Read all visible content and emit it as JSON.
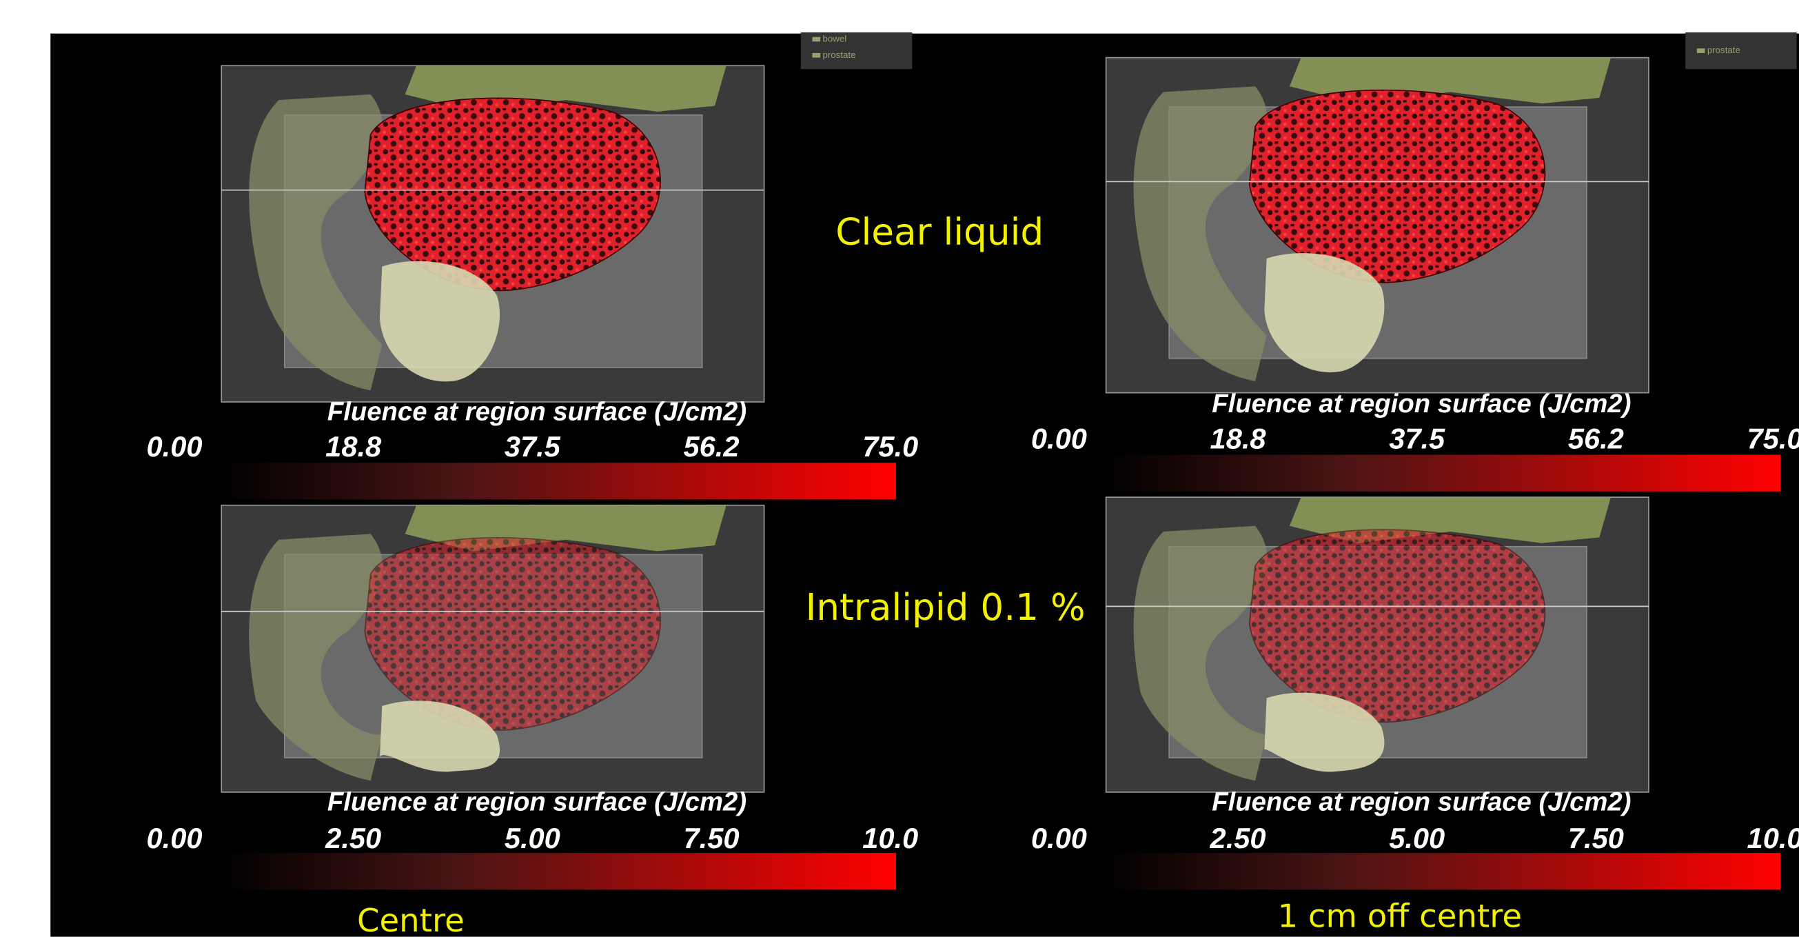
{
  "row_labels": [
    "Clear liquid",
    "Intralipid 0.1 %"
  ],
  "column_labels": [
    "Centre",
    "1 cm off centre"
  ],
  "panels": [
    {
      "legend": [
        "bowel",
        "prostate"
      ],
      "colorbar_title": "Fluence at region surface (J/cm2)",
      "colorbar_ticks": [
        "0.00",
        "18.8",
        "37.5",
        "56.2",
        "75.0"
      ]
    },
    {
      "legend": [
        "prostate"
      ],
      "colorbar_title": "Fluence at region surface (J/cm2)",
      "colorbar_ticks": [
        "0.00",
        "18.8",
        "37.5",
        "56.2",
        "75.0"
      ]
    },
    {
      "legend": [],
      "colorbar_title": "Fluence at region surface (J/cm2)",
      "colorbar_ticks": [
        "0.00",
        "2.50",
        "5.00",
        "7.50",
        "10.0"
      ]
    },
    {
      "legend": [],
      "colorbar_title": "Fluence at region surface (J/cm2)",
      "colorbar_ticks": [
        "0.00",
        "2.50",
        "5.00",
        "7.50",
        "10.0"
      ]
    }
  ]
}
